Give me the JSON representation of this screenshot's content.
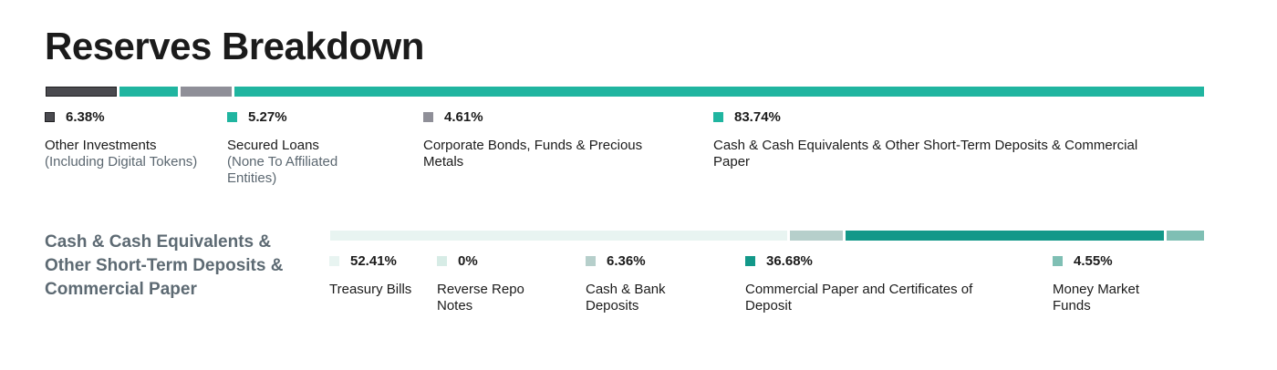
{
  "title": "Reserves Breakdown",
  "chart_data": [
    {
      "type": "bar",
      "orientation": "horizontal-stacked",
      "title": "Reserves Breakdown",
      "categories": [
        "Other Investments (Including Digital Tokens)",
        "Secured Loans (None To Affiliated Entities)",
        "Corporate Bonds, Funds & Precious Metals",
        "Cash & Cash Equivalents & Other Short-Term Deposits & Commercial Paper"
      ],
      "values": [
        6.38,
        5.27,
        4.61,
        83.74
      ],
      "unit": "%",
      "items": [
        {
          "pct": "6.38%",
          "label": "Other Investments",
          "sub": "(Including Digital Tokens)",
          "color": "#4a4a4f",
          "border": "#1f1f22"
        },
        {
          "pct": "5.27%",
          "label": "Secured Loans",
          "sub": "(None To Affiliated Entities)",
          "color": "#20b5a0",
          "border": "#20b5a0"
        },
        {
          "pct": "4.61%",
          "label": "Corporate Bonds, Funds & Precious Metals",
          "sub": "",
          "color": "#8f8f98",
          "border": "#8f8f98"
        },
        {
          "pct": "83.74%",
          "label": "Cash & Cash Equivalents & Other Short-Term Deposits & Commercial Paper",
          "sub": "",
          "color": "#20b5a0",
          "border": "#20b5a0"
        }
      ]
    },
    {
      "type": "bar",
      "orientation": "horizontal-stacked",
      "title": "Cash & Cash Equivalents & Other Short-Term Deposits & Commercial Paper",
      "categories": [
        "Treasury Bills",
        "Reverse Repo Notes",
        "Cash & Bank Deposits",
        "Commercial Paper and Certificates of Deposit",
        "Money Market Funds"
      ],
      "values": [
        52.41,
        0,
        6.36,
        36.68,
        4.55
      ],
      "unit": "%",
      "items": [
        {
          "pct": "52.41%",
          "label": "Treasury Bills",
          "color": "#e8f4f1",
          "border": "#e8f4f1"
        },
        {
          "pct": "0%",
          "label": "Reverse Repo Notes",
          "color": "#d7ece6",
          "border": "#d7ece6"
        },
        {
          "pct": "6.36%",
          "label": "Cash & Bank Deposits",
          "color": "#b6cfcb",
          "border": "#b6cfcb"
        },
        {
          "pct": "36.68%",
          "label": "Commercial Paper and Certificates of Deposit",
          "color": "#139889",
          "border": "#139889"
        },
        {
          "pct": "4.55%",
          "label": "Money Market Funds",
          "color": "#7fbfb4",
          "border": "#7fbfb4"
        }
      ]
    }
  ]
}
